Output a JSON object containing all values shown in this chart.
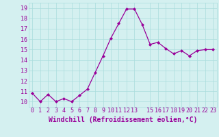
{
  "x": [
    0,
    1,
    2,
    3,
    4,
    5,
    6,
    7,
    8,
    9,
    10,
    11,
    12,
    13,
    14,
    15,
    16,
    17,
    18,
    19,
    20,
    21,
    22,
    23
  ],
  "y": [
    10.8,
    10.0,
    10.7,
    10.0,
    10.3,
    10.0,
    10.6,
    11.2,
    12.8,
    14.4,
    16.1,
    17.5,
    18.9,
    18.9,
    17.4,
    15.5,
    15.7,
    15.1,
    14.6,
    14.9,
    14.4,
    14.9,
    15.0,
    15.0
  ],
  "xlabel": "Windchill (Refroidissement éolien,°C)",
  "xlim_min": -0.5,
  "xlim_max": 23.5,
  "ylim_min": 9.5,
  "ylim_max": 19.5,
  "yticks": [
    10,
    11,
    12,
    13,
    14,
    15,
    16,
    17,
    18,
    19
  ],
  "xticks": [
    0,
    1,
    2,
    3,
    4,
    5,
    6,
    7,
    8,
    9,
    10,
    11,
    12,
    13,
    15,
    16,
    17,
    18,
    19,
    20,
    21,
    22,
    23
  ],
  "xtick_labels": [
    "0",
    "1",
    "2",
    "3",
    "4",
    "5",
    "6",
    "7",
    "8",
    "9",
    "10",
    "11",
    "12",
    "13",
    "15",
    "16",
    "17",
    "18",
    "19",
    "20",
    "21",
    "22",
    "23"
  ],
  "line_color": "#990099",
  "marker_color": "#990099",
  "bg_color": "#d4f0f0",
  "grid_color": "#aadddd",
  "text_color": "#990099",
  "font_size": 6.0,
  "xlabel_font_size": 7.0
}
